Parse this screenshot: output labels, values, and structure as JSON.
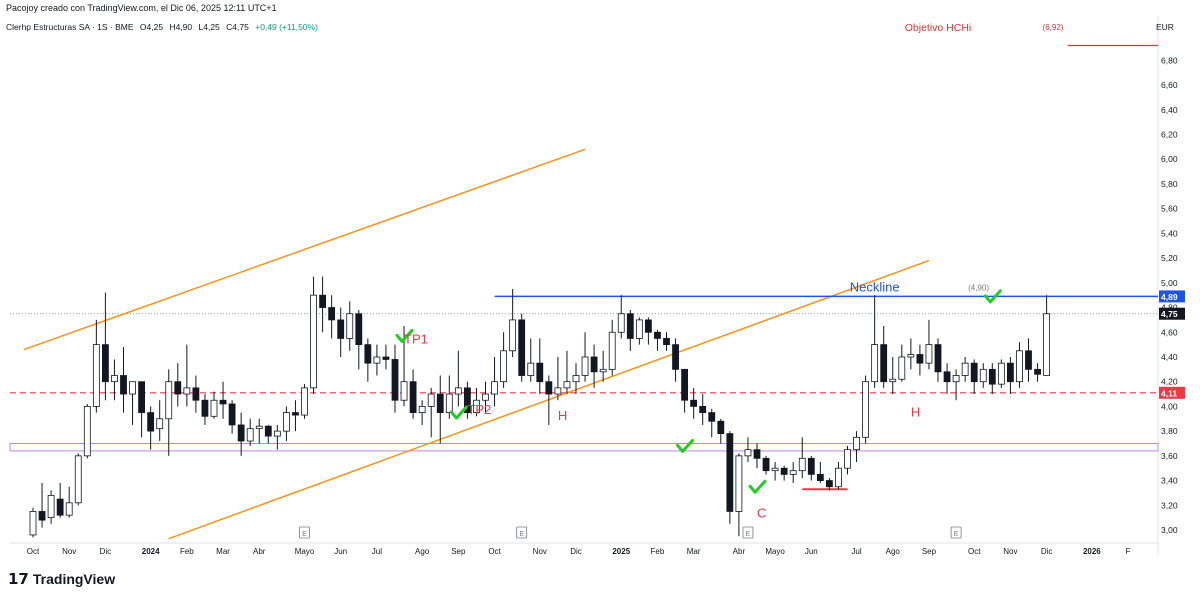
{
  "header": {
    "top_line": "Pacojoy creado con TradingView.com, el Dic 06, 2025 12:11 UTC+1",
    "symbol_line": "Clerhp Estructuras SA · 1S · BME",
    "ohlc": {
      "open": "O4,25",
      "high": "H4,90",
      "low": "L4,25",
      "close": "C4,75",
      "change": "+0,49 (+11,50%)"
    }
  },
  "footer": {
    "logo_mark": "𝟭𝟳",
    "logo_text": "TradingView"
  },
  "chart_data": {
    "type": "candlestick",
    "currency": "EUR",
    "y_ticks": [
      "6,80",
      "6,60",
      "6,40",
      "6,20",
      "6,00",
      "5,80",
      "5,60",
      "5,40",
      "5,20",
      "5,00",
      "4,80",
      "4,60",
      "4,40",
      "4,20",
      "4,00",
      "3,80",
      "3,60",
      "3,40",
      "3,20",
      "3,00"
    ],
    "y_range": [
      2.9,
      7.0
    ],
    "x_ticks": [
      {
        "label": "Oct",
        "w": 0
      },
      {
        "label": "Nov",
        "w": 4
      },
      {
        "label": "Dic",
        "w": 8
      },
      {
        "label": "2024",
        "w": 13
      },
      {
        "label": "Feb",
        "w": 17
      },
      {
        "label": "Mar",
        "w": 21
      },
      {
        "label": "Abr",
        "w": 25
      },
      {
        "label": "Mayo",
        "w": 30
      },
      {
        "label": "Jun",
        "w": 34
      },
      {
        "label": "Jul",
        "w": 38
      },
      {
        "label": "Ago",
        "w": 43
      },
      {
        "label": "Sep",
        "w": 47
      },
      {
        "label": "Oct",
        "w": 51
      },
      {
        "label": "Nov",
        "w": 56
      },
      {
        "label": "Dic",
        "w": 60
      },
      {
        "label": "2025",
        "w": 65
      },
      {
        "label": "Feb",
        "w": 69
      },
      {
        "label": "Mar",
        "w": 73
      },
      {
        "label": "Abr",
        "w": 78
      },
      {
        "label": "Mayo",
        "w": 82
      },
      {
        "label": "Jun",
        "w": 86
      },
      {
        "label": "Jul",
        "w": 91
      },
      {
        "label": "Ago",
        "w": 95
      },
      {
        "label": "Sep",
        "w": 99
      },
      {
        "label": "Oct",
        "w": 104
      },
      {
        "label": "Nov",
        "w": 108
      },
      {
        "label": "Dic",
        "w": 112
      },
      {
        "label": "2026",
        "w": 117
      },
      {
        "label": "F",
        "w": 121
      }
    ],
    "candles": [
      [
        2.96,
        3.15,
        2.94,
        3.18
      ],
      [
        3.15,
        3.08,
        3.02,
        3.38
      ],
      [
        3.1,
        3.28,
        3.05,
        3.32
      ],
      [
        3.25,
        3.12,
        3.1,
        3.38
      ],
      [
        3.12,
        3.22,
        3.1,
        3.35
      ],
      [
        3.22,
        3.6,
        3.2,
        3.62
      ],
      [
        3.6,
        4.0,
        3.58,
        4.02
      ],
      [
        4.0,
        4.5,
        3.95,
        4.7
      ],
      [
        4.5,
        4.2,
        4.05,
        4.92
      ],
      [
        4.2,
        4.25,
        4.05,
        4.38
      ],
      [
        4.25,
        4.1,
        3.95,
        4.48
      ],
      [
        4.1,
        4.2,
        3.85,
        4.2
      ],
      [
        4.2,
        3.95,
        3.75,
        4.2
      ],
      [
        3.95,
        3.8,
        3.65,
        4.0
      ],
      [
        3.82,
        3.9,
        3.72,
        4.05
      ],
      [
        3.9,
        4.2,
        3.6,
        4.3
      ],
      [
        4.2,
        4.1,
        4.0,
        4.35
      ],
      [
        4.1,
        4.15,
        4.0,
        4.5
      ],
      [
        4.15,
        4.05,
        3.95,
        4.25
      ],
      [
        4.05,
        3.92,
        3.85,
        4.1
      ],
      [
        3.92,
        4.05,
        3.9,
        4.12
      ],
      [
        4.05,
        4.02,
        3.9,
        4.2
      ],
      [
        4.02,
        3.85,
        3.78,
        4.05
      ],
      [
        3.85,
        3.72,
        3.6,
        3.95
      ],
      [
        3.72,
        3.82,
        3.68,
        3.9
      ],
      [
        3.82,
        3.84,
        3.7,
        3.9
      ],
      [
        3.84,
        3.76,
        3.7,
        3.85
      ],
      [
        3.76,
        3.8,
        3.65,
        3.85
      ],
      [
        3.8,
        3.95,
        3.72,
        4.0
      ],
      [
        3.95,
        3.93,
        3.8,
        4.05
      ],
      [
        3.93,
        4.15,
        3.9,
        4.18
      ],
      [
        4.15,
        4.9,
        4.1,
        5.05
      ],
      [
        4.9,
        4.8,
        4.6,
        5.05
      ],
      [
        4.8,
        4.7,
        4.55,
        4.9
      ],
      [
        4.7,
        4.55,
        4.4,
        4.8
      ],
      [
        4.55,
        4.75,
        4.45,
        4.85
      ],
      [
        4.75,
        4.5,
        4.3,
        4.78
      ],
      [
        4.5,
        4.35,
        4.2,
        4.55
      ],
      [
        4.35,
        4.4,
        4.25,
        4.5
      ],
      [
        4.4,
        4.38,
        4.3,
        4.5
      ],
      [
        4.38,
        4.05,
        3.95,
        4.5
      ],
      [
        4.05,
        4.2,
        4.0,
        4.65
      ],
      [
        4.2,
        3.95,
        3.9,
        4.3
      ],
      [
        3.95,
        4.0,
        3.85,
        4.05
      ],
      [
        4.0,
        4.1,
        3.75,
        4.15
      ],
      [
        4.1,
        3.95,
        3.7,
        4.25
      ],
      [
        3.95,
        4.1,
        3.9,
        4.25
      ],
      [
        4.1,
        4.15,
        4.0,
        4.45
      ],
      [
        4.15,
        3.95,
        3.9,
        4.2
      ],
      [
        3.95,
        4.05,
        3.92,
        4.15
      ],
      [
        4.05,
        4.1,
        3.95,
        4.2
      ],
      [
        4.1,
        4.2,
        4.0,
        4.4
      ],
      [
        4.2,
        4.45,
        4.15,
        4.6
      ],
      [
        4.45,
        4.7,
        4.4,
        4.95
      ],
      [
        4.7,
        4.25,
        4.2,
        4.75
      ],
      [
        4.25,
        4.35,
        4.2,
        4.55
      ],
      [
        4.35,
        4.2,
        4.1,
        4.55
      ],
      [
        4.2,
        4.1,
        3.85,
        4.25
      ],
      [
        4.1,
        4.15,
        4.05,
        4.4
      ],
      [
        4.15,
        4.2,
        4.1,
        4.45
      ],
      [
        4.2,
        4.25,
        4.1,
        4.35
      ],
      [
        4.25,
        4.4,
        4.2,
        4.6
      ],
      [
        4.4,
        4.28,
        4.15,
        4.5
      ],
      [
        4.28,
        4.3,
        4.2,
        4.45
      ],
      [
        4.3,
        4.6,
        4.25,
        4.7
      ],
      [
        4.6,
        4.75,
        4.55,
        4.9
      ],
      [
        4.75,
        4.55,
        4.45,
        4.78
      ],
      [
        4.55,
        4.7,
        4.5,
        4.72
      ],
      [
        4.7,
        4.6,
        4.5,
        4.72
      ],
      [
        4.6,
        4.55,
        4.45,
        4.62
      ],
      [
        4.55,
        4.5,
        4.45,
        4.6
      ],
      [
        4.5,
        4.3,
        4.2,
        4.55
      ],
      [
        4.3,
        4.05,
        3.95,
        4.3
      ],
      [
        4.05,
        4.0,
        3.9,
        4.15
      ],
      [
        4.0,
        3.95,
        3.85,
        4.1
      ],
      [
        3.95,
        3.88,
        3.75,
        3.98
      ],
      [
        3.88,
        3.78,
        3.7,
        3.9
      ],
      [
        3.78,
        3.15,
        3.05,
        3.8
      ],
      [
        3.15,
        3.6,
        2.95,
        3.62
      ],
      [
        3.6,
        3.65,
        3.55,
        3.75
      ],
      [
        3.65,
        3.58,
        3.5,
        3.7
      ],
      [
        3.58,
        3.48,
        3.45,
        3.6
      ],
      [
        3.48,
        3.5,
        3.4,
        3.55
      ],
      [
        3.5,
        3.45,
        3.4,
        3.52
      ],
      [
        3.45,
        3.48,
        3.38,
        3.55
      ],
      [
        3.48,
        3.58,
        3.42,
        3.75
      ],
      [
        3.58,
        3.45,
        3.4,
        3.6
      ],
      [
        3.45,
        3.4,
        3.38,
        3.55
      ],
      [
        3.4,
        3.35,
        3.32,
        3.42
      ],
      [
        3.35,
        3.5,
        3.33,
        3.55
      ],
      [
        3.5,
        3.65,
        3.45,
        3.68
      ],
      [
        3.65,
        3.75,
        3.55,
        3.8
      ],
      [
        3.75,
        4.2,
        3.7,
        4.25
      ],
      [
        4.2,
        4.5,
        4.15,
        4.9
      ],
      [
        4.5,
        4.2,
        4.15,
        4.65
      ],
      [
        4.2,
        4.22,
        4.1,
        4.4
      ],
      [
        4.22,
        4.4,
        4.2,
        4.5
      ],
      [
        4.4,
        4.42,
        4.3,
        4.55
      ],
      [
        4.42,
        4.35,
        4.25,
        4.5
      ],
      [
        4.35,
        4.5,
        4.3,
        4.7
      ],
      [
        4.5,
        4.28,
        4.2,
        4.55
      ],
      [
        4.28,
        4.2,
        4.1,
        4.35
      ],
      [
        4.2,
        4.25,
        4.05,
        4.3
      ],
      [
        4.25,
        4.35,
        4.2,
        4.4
      ],
      [
        4.35,
        4.2,
        4.1,
        4.38
      ],
      [
        4.2,
        4.3,
        4.15,
        4.35
      ],
      [
        4.3,
        4.18,
        4.1,
        4.35
      ],
      [
        4.18,
        4.35,
        4.15,
        4.38
      ],
      [
        4.35,
        4.2,
        4.1,
        4.4
      ],
      [
        4.2,
        4.45,
        4.15,
        4.52
      ],
      [
        4.45,
        4.3,
        4.2,
        4.55
      ],
      [
        4.3,
        4.26,
        4.2,
        4.35
      ],
      [
        4.25,
        4.75,
        4.25,
        4.9
      ]
    ],
    "price_labels": [
      {
        "value": 4.89,
        "text": "4,89",
        "bg": "#1e53e5",
        "fg": "#ffffff"
      },
      {
        "value": 4.75,
        "text": "4,75",
        "bg": "#131722",
        "fg": "#ffffff"
      },
      {
        "value": 4.11,
        "text": "4,11",
        "bg": "#f23645",
        "fg": "#ffffff"
      }
    ],
    "lines": {
      "neckline": {
        "label": "Neckline",
        "value": 4.89,
        "from_w": 51,
        "color": "#1e53e5"
      },
      "support": {
        "value": 4.11,
        "color": "#f23645"
      },
      "zone": {
        "low": 3.64,
        "high": 3.7,
        "color": "#c084e0"
      },
      "channel_upper": {
        "w1": -1,
        "v1": 4.46,
        "w2": 61,
        "v2": 6.08,
        "color": "#f7931a"
      },
      "channel_lower": {
        "w1": 15,
        "v1": 2.93,
        "w2": 99,
        "v2": 5.18,
        "color": "#f7931a"
      },
      "objective": {
        "label": "Objetivo HCHi",
        "value_text": "(6,92)",
        "value": 6.92,
        "color": "#e03131"
      },
      "neck_ref": {
        "text": "(4,90)"
      },
      "red_base": {
        "from_w": 85,
        "to_w": 90,
        "value": 3.33
      }
    },
    "annotations": [
      {
        "text": "TP1",
        "w": 41,
        "v": 4.51,
        "color": "#f23645"
      },
      {
        "text": "TP2",
        "w": 48,
        "v": 3.94,
        "color": "#f23645"
      },
      {
        "text": "H",
        "w": 58,
        "v": 3.89,
        "color": "#f23645"
      },
      {
        "text": "C",
        "w": 80,
        "v": 3.1,
        "color": "#f23645"
      },
      {
        "text": "H",
        "w": 97,
        "v": 3.92,
        "color": "#f23645"
      }
    ],
    "checks": [
      {
        "w": 41,
        "v": 4.55
      },
      {
        "w": 47,
        "v": 3.93
      },
      {
        "w": 72,
        "v": 3.66
      },
      {
        "w": 80,
        "v": 3.33
      },
      {
        "w": 106,
        "v": 4.87
      }
    ],
    "earnings_markers": [
      {
        "w": 30,
        "label": "E"
      },
      {
        "w": 54,
        "label": "E"
      },
      {
        "w": 79,
        "label": "E"
      },
      {
        "w": 102,
        "label": "E"
      }
    ]
  }
}
